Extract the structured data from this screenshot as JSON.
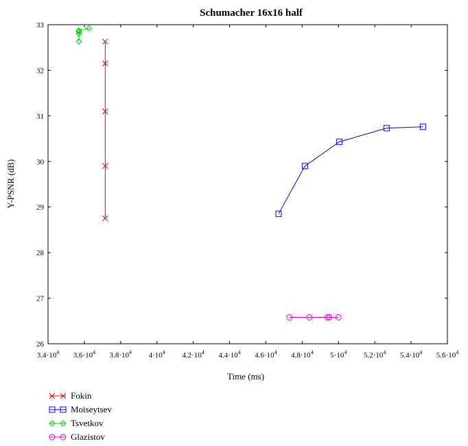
{
  "chart_data": {
    "type": "line",
    "title": "Schumacher 16x16 half",
    "xlabel": "Time (ms)",
    "ylabel": "Y-PSNR (dB)",
    "xlim": [
      34000,
      56000
    ],
    "ylim": [
      26,
      33
    ],
    "xticks": [
      34000,
      36000,
      38000,
      40000,
      42000,
      44000,
      46000,
      48000,
      50000,
      52000,
      54000,
      56000
    ],
    "xtick_labels": [
      {
        "mant": "3.4·10",
        "exp": "4"
      },
      {
        "mant": "3.6·10",
        "exp": "4"
      },
      {
        "mant": "3.8·10",
        "exp": "4"
      },
      {
        "mant": "4·10",
        "exp": "4"
      },
      {
        "mant": "4.2·10",
        "exp": "4"
      },
      {
        "mant": "4.4·10",
        "exp": "4"
      },
      {
        "mant": "4.6·10",
        "exp": "4"
      },
      {
        "mant": "4.8·10",
        "exp": "4"
      },
      {
        "mant": "5·10",
        "exp": "4"
      },
      {
        "mant": "5.2·10",
        "exp": "4"
      },
      {
        "mant": "5.4·10",
        "exp": "4"
      },
      {
        "mant": "5.6·10",
        "exp": "4"
      }
    ],
    "yticks": [
      26,
      27,
      28,
      29,
      30,
      31,
      32,
      33
    ],
    "ytick_labels": [
      "26",
      "27",
      "28",
      "29",
      "30",
      "31",
      "32",
      "33"
    ],
    "grid": false,
    "legend_position": "bottom-left",
    "series": [
      {
        "name": "Fokin",
        "color": "#dd0000",
        "marker": "x",
        "x": [
          37150,
          37150,
          37150,
          37150,
          37150
        ],
        "y": [
          28.75,
          29.9,
          31.1,
          32.15,
          32.63
        ]
      },
      {
        "name": "Moiseytsev",
        "color": "#0000cc",
        "marker": "square",
        "x": [
          46700,
          48150,
          50050,
          52650,
          54650
        ],
        "y": [
          28.85,
          29.9,
          30.43,
          30.73,
          30.76
        ]
      },
      {
        "name": "Tsvetkov",
        "color": "#00cc00",
        "marker": "diamond",
        "x": [
          35700,
          35700,
          35700,
          35700,
          36250
        ],
        "y": [
          32.63,
          32.8,
          32.85,
          32.87,
          32.92
        ]
      },
      {
        "name": "Glazistov",
        "color": "#dd00dd",
        "marker": "circle",
        "x": [
          47300,
          48400,
          49400,
          49500,
          50000
        ],
        "y": [
          26.58,
          26.58,
          26.58,
          26.58,
          26.58
        ]
      }
    ]
  }
}
